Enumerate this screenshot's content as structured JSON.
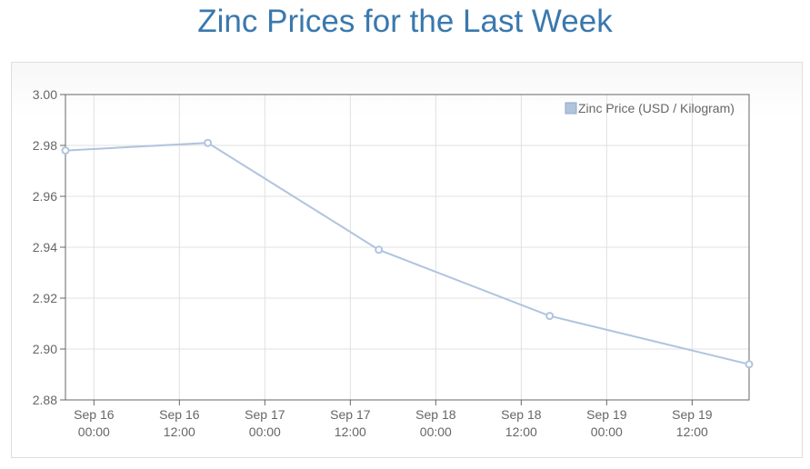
{
  "title": "Zinc Prices for the Last Week",
  "chart_data": {
    "type": "line",
    "title": "Zinc Prices for the Last Week",
    "xlabel": "",
    "ylabel": "",
    "ylim": [
      2.88,
      3.0
    ],
    "xlim": [
      "2023-09-15T20:00",
      "2023-09-19T20:00"
    ],
    "y_ticks": [
      "3.00",
      "2.98",
      "2.96",
      "2.94",
      "2.92",
      "2.90",
      "2.88"
    ],
    "x_ticks": [
      {
        "line1": "Sep 16",
        "line2": "00:00"
      },
      {
        "line1": "Sep 16",
        "line2": "12:00"
      },
      {
        "line1": "Sep 17",
        "line2": "00:00"
      },
      {
        "line1": "Sep 17",
        "line2": "12:00"
      },
      {
        "line1": "Sep 18",
        "line2": "00:00"
      },
      {
        "line1": "Sep 18",
        "line2": "12:00"
      },
      {
        "line1": "Sep 19",
        "line2": "00:00"
      },
      {
        "line1": "Sep 19",
        "line2": "12:00"
      }
    ],
    "series": [
      {
        "name": "Zinc Price (USD / Kilogram)",
        "color": "#b0c4de",
        "points": [
          {
            "x": "2023-09-15T20:00",
            "y": 2.978
          },
          {
            "x": "2023-09-16T16:00",
            "y": 2.981
          },
          {
            "x": "2023-09-17T16:00",
            "y": 2.939
          },
          {
            "x": "2023-09-18T16:00",
            "y": 2.913
          },
          {
            "x": "2023-09-19T20:00",
            "y": 2.894
          }
        ]
      }
    ],
    "grid": true,
    "legend_position": "top-right"
  }
}
